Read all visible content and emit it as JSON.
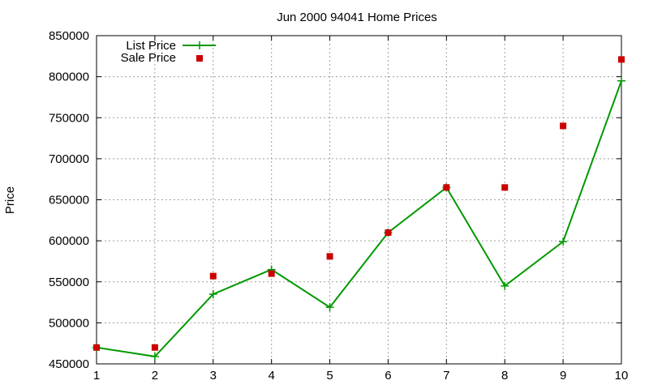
{
  "chart_data": {
    "type": "line",
    "title": "Jun 2000 94041 Home Prices",
    "xlabel": "",
    "ylabel": "Price",
    "xlim": [
      1,
      10
    ],
    "ylim": [
      450000,
      850000
    ],
    "x_ticks": [
      "1",
      "2",
      "3",
      "4",
      "5",
      "6",
      "7",
      "8",
      "9",
      "10"
    ],
    "y_ticks": [
      "450000",
      "500000",
      "550000",
      "600000",
      "650000",
      "700000",
      "750000",
      "800000",
      "850000"
    ],
    "grid": true,
    "legend_position": "top-left",
    "series": [
      {
        "name": "List Price",
        "type": "line",
        "marker": "plus",
        "color": "#009900",
        "x": [
          1,
          2,
          3,
          4,
          5,
          6,
          7,
          8,
          9,
          10
        ],
        "values": [
          470000,
          459000,
          535000,
          565000,
          519000,
          610000,
          665000,
          545000,
          599000,
          795000
        ]
      },
      {
        "name": "Sale Price",
        "type": "scatter",
        "marker": "square",
        "color": "#cc0000",
        "x": [
          1,
          2,
          3,
          4,
          5,
          6,
          7,
          8,
          9,
          10
        ],
        "values": [
          470000,
          470000,
          557000,
          560000,
          581000,
          610000,
          665000,
          665000,
          740000,
          821000
        ]
      }
    ]
  }
}
